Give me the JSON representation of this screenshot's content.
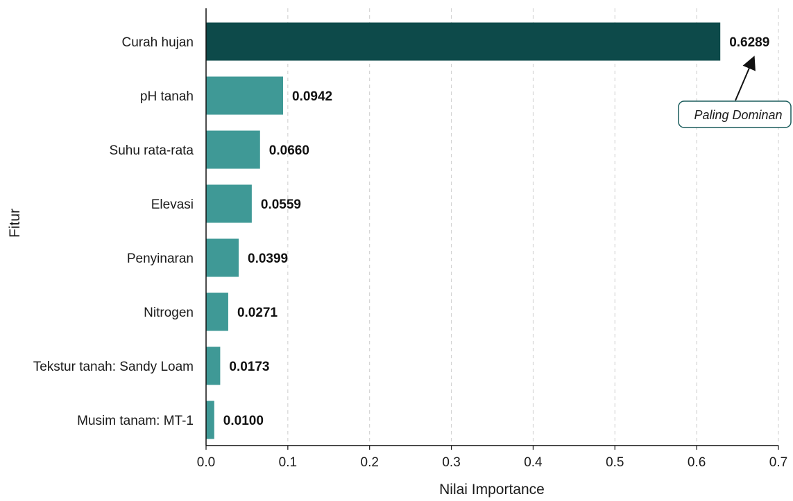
{
  "chart_data": {
    "type": "bar",
    "orientation": "horizontal",
    "categories": [
      "Curah hujan",
      "pH tanah",
      "Suhu rata-rata",
      "Elevasi",
      "Penyinaran",
      "Nitrogen",
      "Tekstur tanah: Sandy Loam",
      "Musim tanam: MT-1"
    ],
    "values": [
      0.6289,
      0.0942,
      0.066,
      0.0559,
      0.0399,
      0.0271,
      0.0173,
      0.01
    ],
    "value_labels": [
      "0.6289",
      "0.0942",
      "0.0660",
      "0.0559",
      "0.0399",
      "0.0271",
      "0.0173",
      "0.0100"
    ],
    "xlabel": "Nilai Importance",
    "ylabel": "Fitur",
    "xlim": [
      0,
      0.7
    ],
    "xticks": [
      0.0,
      0.1,
      0.2,
      0.3,
      0.4,
      0.5,
      0.6,
      0.7
    ],
    "xtick_labels": [
      "0.0",
      "0.1",
      "0.2",
      "0.3",
      "0.4",
      "0.5",
      "0.6",
      "0.7"
    ],
    "grid": "vertical dashed",
    "annotation": {
      "text": "Paling Dominan",
      "target_category": "Curah hujan"
    },
    "colors": {
      "dominant": "#0d4a4a",
      "default": "#3f9996",
      "grid": "#cccccc",
      "annotation_border": "#1a5c5c"
    }
  }
}
